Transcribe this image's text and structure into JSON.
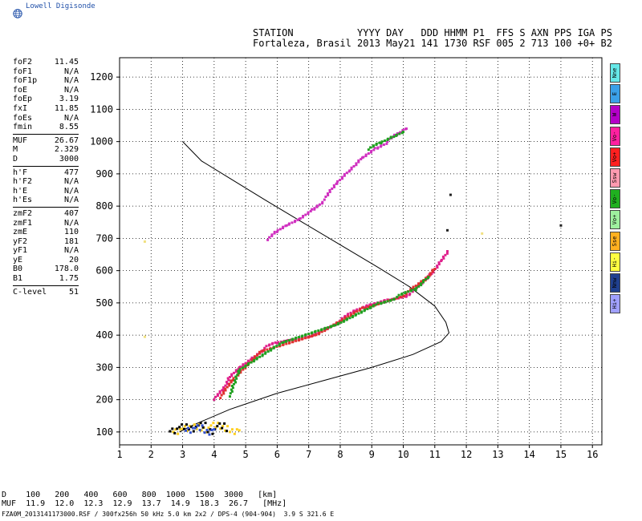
{
  "logo": {
    "text": "Lowell Digisonde",
    "icon": "globe-icon"
  },
  "header": {
    "line1": "STATION           YYYY DAY   DDD HHMM P1  FFS S AXN PPS IGA PS",
    "line2": "Fortaleza, Brasil 2013 May21 141 1730 RSF 005 2 713 100 +0+ B2"
  },
  "params": [
    {
      "label": "foF2",
      "value": "11.45"
    },
    {
      "label": "foF1",
      "value": "N/A"
    },
    {
      "label": "foF1p",
      "value": "N/A"
    },
    {
      "label": "foE",
      "value": "N/A"
    },
    {
      "label": "foEp",
      "value": "3.19"
    },
    {
      "label": "fxI",
      "value": "11.85"
    },
    {
      "label": "foEs",
      "value": "N/A"
    },
    {
      "label": "fmin",
      "value": "8.55"
    },
    {
      "sep": true
    },
    {
      "label": "MUF",
      "value": "26.67"
    },
    {
      "label": "M",
      "value": "2.329"
    },
    {
      "label": "D",
      "value": "3000"
    },
    {
      "sep": true
    },
    {
      "label": "h'F",
      "value": "477"
    },
    {
      "label": "h'F2",
      "value": "N/A"
    },
    {
      "label": "h'E",
      "value": "N/A"
    },
    {
      "label": "h'Es",
      "value": "N/A"
    },
    {
      "sep": true
    },
    {
      "label": "zmF2",
      "value": "407"
    },
    {
      "label": "zmF1",
      "value": "N/A"
    },
    {
      "label": "zmE",
      "value": "110"
    },
    {
      "label": "yF2",
      "value": "181"
    },
    {
      "label": "yF1",
      "value": "N/A"
    },
    {
      "label": "yE",
      "value": "20"
    },
    {
      "label": "B0",
      "value": "178.0"
    },
    {
      "label": "B1",
      "value": "1.75"
    },
    {
      "sep": true
    },
    {
      "label": "C-level",
      "value": "51"
    }
  ],
  "legend": [
    {
      "label": "Nne",
      "color": "#66e8e8"
    },
    {
      "label": "E",
      "color": "#3aa0e8"
    },
    {
      "label": "W",
      "color": "#b400c8"
    },
    {
      "label": "Vo-",
      "color": "#ff20a0"
    },
    {
      "label": "Vo+",
      "color": "#ff2020"
    },
    {
      "label": "Ssw",
      "color": "#ff9ab0"
    },
    {
      "label": "Vo-",
      "color": "#20b020"
    },
    {
      "label": "Vo+",
      "color": "#9ef09e"
    },
    {
      "label": "Sse",
      "color": "#ffb020"
    },
    {
      "label": "Hi-",
      "color": "#ffff40"
    },
    {
      "label": "Nnw",
      "color": "#204090"
    },
    {
      "label": "Hi+",
      "color": "#a0a0ff"
    }
  ],
  "chart_data": {
    "type": "scatter",
    "x_ticks": [
      "1",
      "2",
      "3",
      "4",
      "5",
      "6",
      "7",
      "8",
      "9",
      "10",
      "11",
      "12",
      "13",
      "14",
      "15",
      "16"
    ],
    "y_ticks": [
      "100",
      "200",
      "300",
      "400",
      "500",
      "600",
      "700",
      "800",
      "900",
      "1000",
      "1100",
      "1200"
    ],
    "xlim": [
      1,
      16.3
    ],
    "ylim": [
      60,
      1260
    ],
    "grid": true,
    "profile": {
      "name": "",
      "color": "#000000",
      "points": [
        [
          3.0,
          1000
        ],
        [
          3.6,
          940
        ],
        [
          4.6,
          880
        ],
        [
          5.6,
          820
        ],
        [
          6.8,
          750
        ],
        [
          8.0,
          680
        ],
        [
          9.2,
          610
        ],
        [
          10.2,
          550
        ],
        [
          11.0,
          490
        ],
        [
          11.35,
          440
        ],
        [
          11.45,
          407
        ],
        [
          11.2,
          380
        ],
        [
          10.3,
          340
        ],
        [
          9.0,
          300
        ],
        [
          7.5,
          260
        ],
        [
          6.0,
          220
        ],
        [
          4.5,
          170
        ],
        [
          3.3,
          120
        ],
        [
          2.9,
          100
        ]
      ]
    },
    "series": [
      {
        "name": "F2 trace (Vo-)",
        "color": "#e0208c",
        "points": [
          [
            4.0,
            200
          ],
          [
            4.3,
            230
          ],
          [
            4.5,
            270
          ],
          [
            4.8,
            300
          ],
          [
            5.2,
            330
          ],
          [
            5.6,
            360
          ],
          [
            6.0,
            375
          ],
          [
            6.5,
            385
          ],
          [
            7.0,
            395
          ],
          [
            7.5,
            420
          ],
          [
            8.0,
            445
          ],
          [
            8.5,
            475
          ],
          [
            9.0,
            495
          ],
          [
            9.5,
            510
          ],
          [
            10.0,
            520
          ],
          [
            10.3,
            535
          ],
          [
            10.6,
            560
          ],
          [
            10.9,
            590
          ],
          [
            11.2,
            630
          ],
          [
            11.4,
            660
          ]
        ]
      },
      {
        "name": "F2 trace (Vo+)",
        "color": "#e03030",
        "points": [
          [
            4.2,
            205
          ],
          [
            4.6,
            260
          ],
          [
            5.5,
            350
          ],
          [
            7.2,
            400
          ],
          [
            8.7,
            485
          ],
          [
            10.1,
            528
          ],
          [
            10.7,
            570
          ],
          [
            11.0,
            605
          ]
        ]
      },
      {
        "name": "F2 trace (Vo-)",
        "color": "#20a020",
        "points": [
          [
            4.5,
            210
          ],
          [
            4.8,
            290
          ],
          [
            6.2,
            378
          ],
          [
            7.8,
            430
          ],
          [
            9.2,
            500
          ],
          [
            9.8,
            518
          ],
          [
            10.4,
            540
          ],
          [
            10.8,
            580
          ]
        ]
      },
      {
        "name": "2F trace",
        "color": "#d030c0",
        "points": [
          [
            5.7,
            695
          ],
          [
            6.0,
            720
          ],
          [
            6.3,
            740
          ],
          [
            6.7,
            760
          ],
          [
            7.1,
            790
          ],
          [
            7.5,
            820
          ],
          [
            7.9,
            870
          ],
          [
            8.3,
            910
          ],
          [
            8.7,
            950
          ],
          [
            9.1,
            980
          ],
          [
            9.5,
            1000
          ],
          [
            9.8,
            1020
          ],
          [
            10.1,
            1040
          ]
        ]
      },
      {
        "name": "2F trace (Vo-)",
        "color": "#20a020",
        "points": [
          [
            8.9,
            975
          ],
          [
            9.3,
            995
          ],
          [
            9.7,
            1015
          ],
          [
            10.0,
            1030
          ]
        ]
      },
      {
        "name": "Es echoes",
        "color": "#ffd020",
        "points": [
          [
            2.7,
            100
          ],
          [
            3.0,
            110
          ],
          [
            3.3,
            115
          ],
          [
            3.6,
            105
          ],
          [
            3.9,
            120
          ],
          [
            4.2,
            110
          ],
          [
            4.5,
            100
          ],
          [
            4.8,
            105
          ]
        ]
      },
      {
        "name": "Es echoes",
        "color": "#000000",
        "points": [
          [
            2.6,
            102
          ],
          [
            2.9,
            115
          ],
          [
            3.2,
            108
          ],
          [
            3.5,
            120
          ],
          [
            3.8,
            100
          ],
          [
            4.1,
            118
          ],
          [
            4.4,
            103
          ]
        ]
      },
      {
        "name": "Es echoes",
        "color": "#3050d0",
        "points": [
          [
            3.1,
            104
          ],
          [
            3.4,
            112
          ],
          [
            3.7,
            98
          ],
          [
            4.0,
            108
          ]
        ]
      },
      {
        "name": "Noise",
        "color": "#f0e080",
        "points": [
          [
            1.8,
            690
          ],
          [
            1.8,
            395
          ],
          [
            12.5,
            715
          ]
        ]
      },
      {
        "name": "Noise",
        "color": "#202020",
        "points": [
          [
            11.5,
            835
          ],
          [
            11.4,
            725
          ],
          [
            15.0,
            740
          ]
        ]
      }
    ]
  },
  "muf_table": {
    "line1": "D    100   200   400   600   800  1000  1500  3000   [km]",
    "line2": "MUF  11.9  12.0  12.3  12.9  13.7  14.9  18.3  26.7   [MHz]"
  },
  "footer": "FZA0M_2013141173000.RSF / 300fx256h 50 kHz 5.0 km 2x2 / DPS-4 (904-904)  3.9 S 321.6 E"
}
